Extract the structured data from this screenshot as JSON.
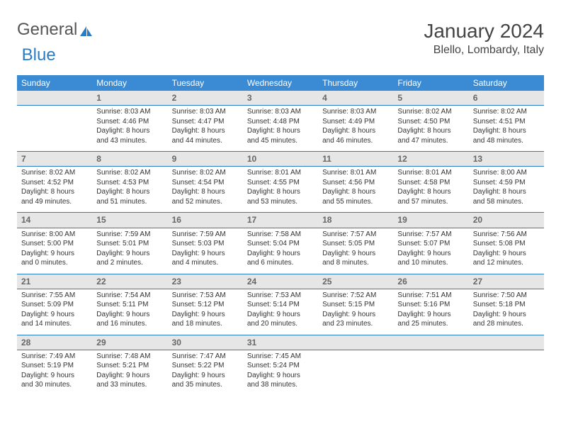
{
  "logo": {
    "part1": "General",
    "part2": "Blue"
  },
  "title": "January 2024",
  "location": "Blello, Lombardy, Italy",
  "colors": {
    "header_bg": "#3b8bd4",
    "header_text": "#ffffff",
    "daynum_bg": "#e6e6e6",
    "border": "#2b7cc4",
    "text": "#333333",
    "logo_blue": "#2b7cc4",
    "logo_gray": "#555555"
  },
  "dayHeaders": [
    "Sunday",
    "Monday",
    "Tuesday",
    "Wednesday",
    "Thursday",
    "Friday",
    "Saturday"
  ],
  "weeks": [
    {
      "nums": [
        "",
        "1",
        "2",
        "3",
        "4",
        "5",
        "6"
      ],
      "cells": [
        "",
        "Sunrise: 8:03 AM\nSunset: 4:46 PM\nDaylight: 8 hours and 43 minutes.",
        "Sunrise: 8:03 AM\nSunset: 4:47 PM\nDaylight: 8 hours and 44 minutes.",
        "Sunrise: 8:03 AM\nSunset: 4:48 PM\nDaylight: 8 hours and 45 minutes.",
        "Sunrise: 8:03 AM\nSunset: 4:49 PM\nDaylight: 8 hours and 46 minutes.",
        "Sunrise: 8:02 AM\nSunset: 4:50 PM\nDaylight: 8 hours and 47 minutes.",
        "Sunrise: 8:02 AM\nSunset: 4:51 PM\nDaylight: 8 hours and 48 minutes."
      ]
    },
    {
      "nums": [
        "7",
        "8",
        "9",
        "10",
        "11",
        "12",
        "13"
      ],
      "cells": [
        "Sunrise: 8:02 AM\nSunset: 4:52 PM\nDaylight: 8 hours and 49 minutes.",
        "Sunrise: 8:02 AM\nSunset: 4:53 PM\nDaylight: 8 hours and 51 minutes.",
        "Sunrise: 8:02 AM\nSunset: 4:54 PM\nDaylight: 8 hours and 52 minutes.",
        "Sunrise: 8:01 AM\nSunset: 4:55 PM\nDaylight: 8 hours and 53 minutes.",
        "Sunrise: 8:01 AM\nSunset: 4:56 PM\nDaylight: 8 hours and 55 minutes.",
        "Sunrise: 8:01 AM\nSunset: 4:58 PM\nDaylight: 8 hours and 57 minutes.",
        "Sunrise: 8:00 AM\nSunset: 4:59 PM\nDaylight: 8 hours and 58 minutes."
      ]
    },
    {
      "nums": [
        "14",
        "15",
        "16",
        "17",
        "18",
        "19",
        "20"
      ],
      "cells": [
        "Sunrise: 8:00 AM\nSunset: 5:00 PM\nDaylight: 9 hours and 0 minutes.",
        "Sunrise: 7:59 AM\nSunset: 5:01 PM\nDaylight: 9 hours and 2 minutes.",
        "Sunrise: 7:59 AM\nSunset: 5:03 PM\nDaylight: 9 hours and 4 minutes.",
        "Sunrise: 7:58 AM\nSunset: 5:04 PM\nDaylight: 9 hours and 6 minutes.",
        "Sunrise: 7:57 AM\nSunset: 5:05 PM\nDaylight: 9 hours and 8 minutes.",
        "Sunrise: 7:57 AM\nSunset: 5:07 PM\nDaylight: 9 hours and 10 minutes.",
        "Sunrise: 7:56 AM\nSunset: 5:08 PM\nDaylight: 9 hours and 12 minutes."
      ]
    },
    {
      "nums": [
        "21",
        "22",
        "23",
        "24",
        "25",
        "26",
        "27"
      ],
      "cells": [
        "Sunrise: 7:55 AM\nSunset: 5:09 PM\nDaylight: 9 hours and 14 minutes.",
        "Sunrise: 7:54 AM\nSunset: 5:11 PM\nDaylight: 9 hours and 16 minutes.",
        "Sunrise: 7:53 AM\nSunset: 5:12 PM\nDaylight: 9 hours and 18 minutes.",
        "Sunrise: 7:53 AM\nSunset: 5:14 PM\nDaylight: 9 hours and 20 minutes.",
        "Sunrise: 7:52 AM\nSunset: 5:15 PM\nDaylight: 9 hours and 23 minutes.",
        "Sunrise: 7:51 AM\nSunset: 5:16 PM\nDaylight: 9 hours and 25 minutes.",
        "Sunrise: 7:50 AM\nSunset: 5:18 PM\nDaylight: 9 hours and 28 minutes."
      ]
    },
    {
      "nums": [
        "28",
        "29",
        "30",
        "31",
        "",
        "",
        ""
      ],
      "cells": [
        "Sunrise: 7:49 AM\nSunset: 5:19 PM\nDaylight: 9 hours and 30 minutes.",
        "Sunrise: 7:48 AM\nSunset: 5:21 PM\nDaylight: 9 hours and 33 minutes.",
        "Sunrise: 7:47 AM\nSunset: 5:22 PM\nDaylight: 9 hours and 35 minutes.",
        "Sunrise: 7:45 AM\nSunset: 5:24 PM\nDaylight: 9 hours and 38 minutes.",
        "",
        "",
        ""
      ]
    }
  ]
}
